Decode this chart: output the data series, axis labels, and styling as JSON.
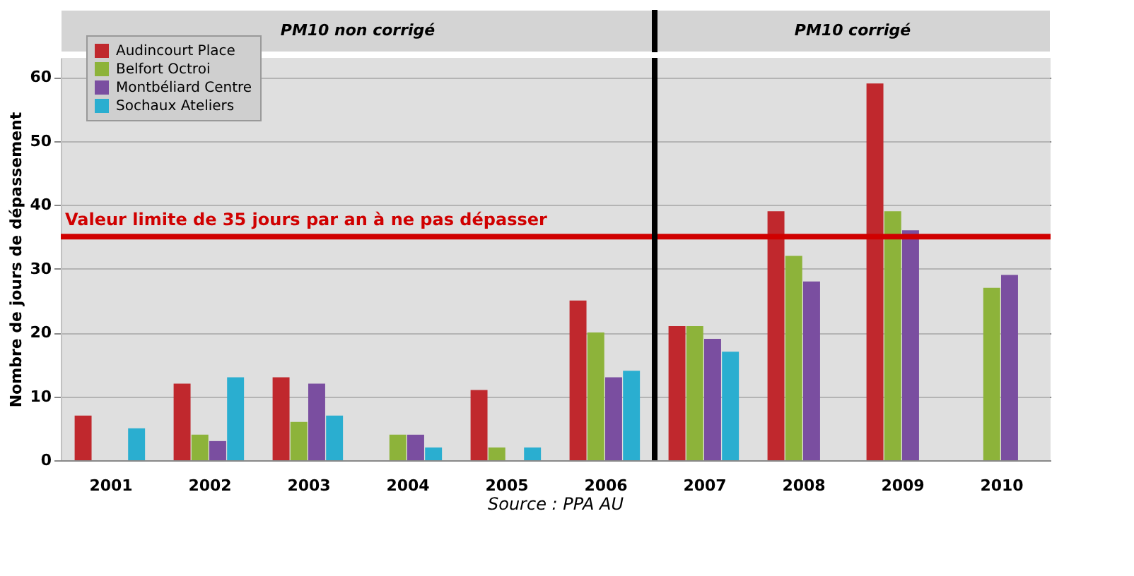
{
  "chart_data": {
    "type": "bar",
    "ylabel": "Nombre de jours de dépassement",
    "categories": [
      "2001",
      "2002",
      "2003",
      "2004",
      "2005",
      "2006",
      "2007",
      "2008",
      "2009",
      "2010"
    ],
    "series": [
      {
        "name": "Audincourt Place",
        "color": "#c0282d",
        "values": [
          7,
          12,
          13,
          null,
          11,
          25,
          21,
          39,
          59,
          null
        ]
      },
      {
        "name": "Belfort Octroi",
        "color": "#8db33a",
        "values": [
          null,
          4,
          6,
          4,
          2,
          20,
          21,
          32,
          39,
          27
        ]
      },
      {
        "name": "Montbéliard Centre",
        "color": "#7a4ea0",
        "values": [
          null,
          3,
          12,
          4,
          null,
          13,
          19,
          28,
          36,
          29
        ]
      },
      {
        "name": "Sochaux Ateliers",
        "color": "#2aaed0",
        "values": [
          5,
          13,
          7,
          2,
          2,
          14,
          17,
          null,
          null,
          null
        ]
      }
    ],
    "ylim": [
      0,
      63
    ],
    "yticks": [
      0,
      10,
      20,
      30,
      40,
      50,
      60
    ],
    "grid": "y",
    "legend": "top left",
    "ref_lines": [
      {
        "axis": "y",
        "value": 35,
        "label": "Valeur limite de 35 jours par an à ne pas dépasser",
        "color": "#d00000"
      },
      {
        "axis": "x",
        "value": "2007",
        "color": "#000000"
      }
    ],
    "bands": [
      {
        "axis": "x",
        "from": "2001",
        "to": "2006",
        "label": "PM10 non corrigé",
        "color": "#d4d4d4"
      },
      {
        "axis": "x",
        "from": "2007",
        "to": "2010",
        "label": "PM10 corrigé",
        "color": "#d4d4d4"
      }
    ],
    "annotations": [
      "Source : PPA AU"
    ]
  }
}
